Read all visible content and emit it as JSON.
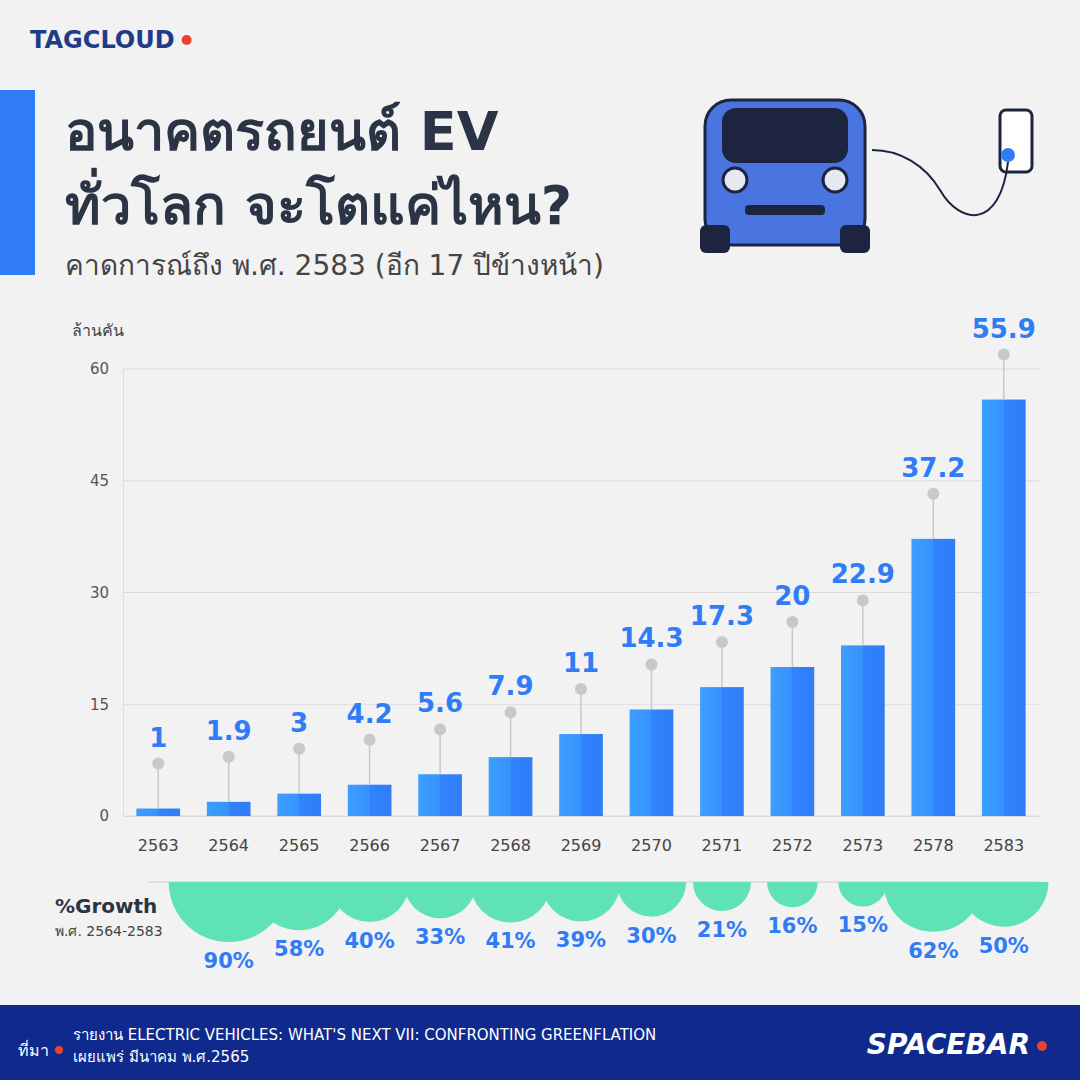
{
  "chart_data": {
    "type": "bar",
    "brand": "TAGCLOUD",
    "title": [
      "อนาคตรถยนต์ EV",
      "ทั่วโลก จะโตแค่ไหน?"
    ],
    "subtitle": "คาดการณ์ถึง พ.ศ. 2583 (อีก 17 ปีข้างหน้า)",
    "y_label": "ล้านคัน",
    "categories": [
      "2563",
      "2564",
      "2565",
      "2566",
      "2567",
      "2568",
      "2569",
      "2570",
      "2571",
      "2572",
      "2573",
      "2578",
      "2583"
    ],
    "values": [
      1,
      1.9,
      3,
      4.2,
      5.6,
      7.9,
      11,
      14.3,
      17.3,
      20,
      22.9,
      37.2,
      55.9
    ],
    "color": "#2f7cf6",
    "ylim": [
      0,
      60
    ],
    "yticks": [
      0,
      15,
      30,
      45,
      60
    ],
    "grid": true,
    "data_labels": true,
    "growth": {
      "title": "%Growth",
      "subtitle": "พ.ศ. 2564-2583",
      "values": [
        null,
        90,
        58,
        40,
        33,
        41,
        39,
        30,
        21,
        16,
        15,
        62,
        50
      ],
      "value_labels": [
        null,
        "90%",
        "58%",
        "40%",
        "33%",
        "41%",
        "39%",
        "30%",
        "21%",
        "16%",
        "15%",
        "62%",
        "50%"
      ],
      "color": "#5fe3b4"
    },
    "source": {
      "label": "ที่มา",
      "lines": [
        "รายงาน ELECTRIC VEHICLES: WHAT'S NEXT VII: CONFRONTING GREENFLATION",
        "เผยแพร่ มีนาคม พ.ศ.2565"
      ]
    },
    "publisher": "SPACEBAR"
  }
}
